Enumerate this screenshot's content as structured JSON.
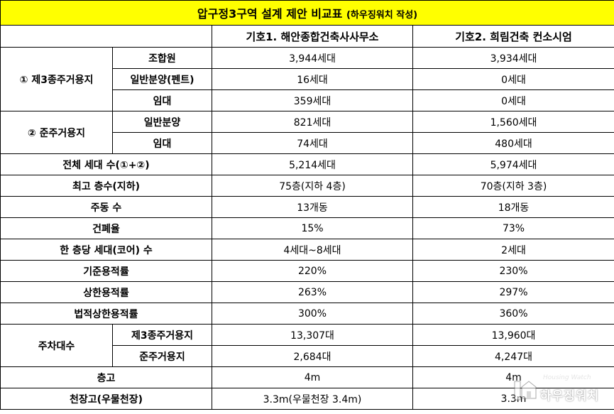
{
  "title": "압구정3구역 설계 제안 비교표",
  "title_note": "(하우징워치 작성)",
  "columns": [
    "기호1. 해안종합건축사사무소",
    "기호2. 희림건축 컨소시엄"
  ],
  "group1": {
    "label": "① 제3종주거용지",
    "rows": [
      {
        "label": "조합원",
        "a": "3,944세대",
        "b": "3,934세대"
      },
      {
        "label": "일반분양(펜트)",
        "a": "16세대",
        "b": "0세대"
      },
      {
        "label": "임대",
        "a": "359세대",
        "b": "0세대"
      }
    ]
  },
  "group2": {
    "label": "② 준주거용지",
    "rows": [
      {
        "label": "일반분양",
        "a": "821세대",
        "b": "1,560세대"
      },
      {
        "label": "임대",
        "a": "74세대",
        "b": "480세대"
      }
    ]
  },
  "summary_rows": [
    {
      "label": "전체 세대 수(①+②)",
      "a": "5,214세대",
      "b": "5,974세대"
    },
    {
      "label": "최고 층수(지하)",
      "a": "75층(지하 4층)",
      "b": "70층(지하 3층)"
    },
    {
      "label": "주동 수",
      "a": "13개동",
      "b": "18개동"
    },
    {
      "label": "건폐율",
      "a": "15%",
      "b": "73%"
    },
    {
      "label": "한 층당 세대(코어) 수",
      "a": "4세대~8세대",
      "b": "2세대"
    },
    {
      "label": "기준용적률",
      "a": "220%",
      "b": "230%"
    },
    {
      "label": "상한용적률",
      "a": "263%",
      "b": "297%"
    },
    {
      "label": "법적상한용적률",
      "a": "300%",
      "b": "360%"
    }
  ],
  "parking": {
    "label": "주차대수",
    "rows": [
      {
        "label": "제3종주거용지",
        "a": "13,307대",
        "b": "13,960대"
      },
      {
        "label": "준주거용지",
        "a": "2,684대",
        "b": "4,247대"
      }
    ]
  },
  "tail_rows": [
    {
      "label": "층고",
      "a": "4m",
      "b": "4m"
    },
    {
      "label": "천장고(우물천장)",
      "a": "3.3m(우물천장 3.4m)",
      "b": "3.3m"
    }
  ],
  "watermark": {
    "top": "Housing Watch",
    "main": "하우징워치",
    "icon": "house-icon"
  }
}
